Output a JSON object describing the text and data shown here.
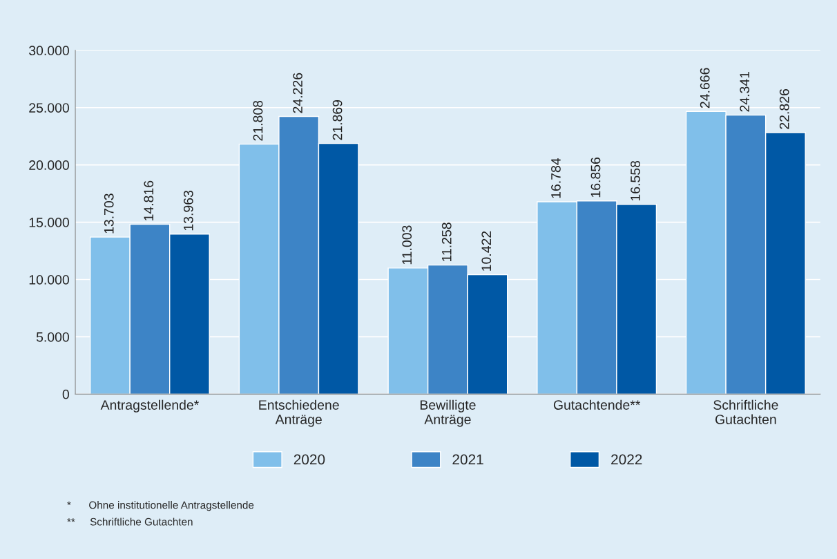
{
  "chart_data": {
    "type": "bar",
    "categories": [
      "Antragstellende*",
      "Entschiedene\nAnträge",
      "Bewilligte\nAnträge",
      "Gutachtende**",
      "Schriftliche\nGutachten"
    ],
    "series": [
      {
        "name": "2020",
        "color": "#80bfea",
        "values": [
          13703,
          21808,
          11003,
          16784,
          24666
        ],
        "value_labels": [
          "13.703",
          "21.808",
          "11.003",
          "16.784",
          "24.666"
        ]
      },
      {
        "name": "2021",
        "color": "#3d84c6",
        "values": [
          14816,
          24226,
          11258,
          16856,
          24341
        ],
        "value_labels": [
          "14.816",
          "24.226",
          "11.258",
          "16.856",
          "24.341"
        ]
      },
      {
        "name": "2022",
        "color": "#0058a5",
        "values": [
          13963,
          21869,
          10422,
          16558,
          22826
        ],
        "value_labels": [
          "13.963",
          "21.869",
          "10.422",
          "16.558",
          "22.826"
        ]
      }
    ],
    "ylim": [
      0,
      30000
    ],
    "yticks": [
      {
        "value": 0,
        "label": "0"
      },
      {
        "value": 5000,
        "label": "5.000"
      },
      {
        "value": 10000,
        "label": "10.000"
      },
      {
        "value": 15000,
        "label": "15.000"
      },
      {
        "value": 20000,
        "label": "20.000"
      },
      {
        "value": 25000,
        "label": "25.000"
      },
      {
        "value": 30000,
        "label": "30.000"
      }
    ],
    "grid": "y",
    "legend": "bottom",
    "annotations": [
      "*      Ohne institutionelle Antragstellende",
      "**     Schriftliche Gutachten"
    ]
  }
}
